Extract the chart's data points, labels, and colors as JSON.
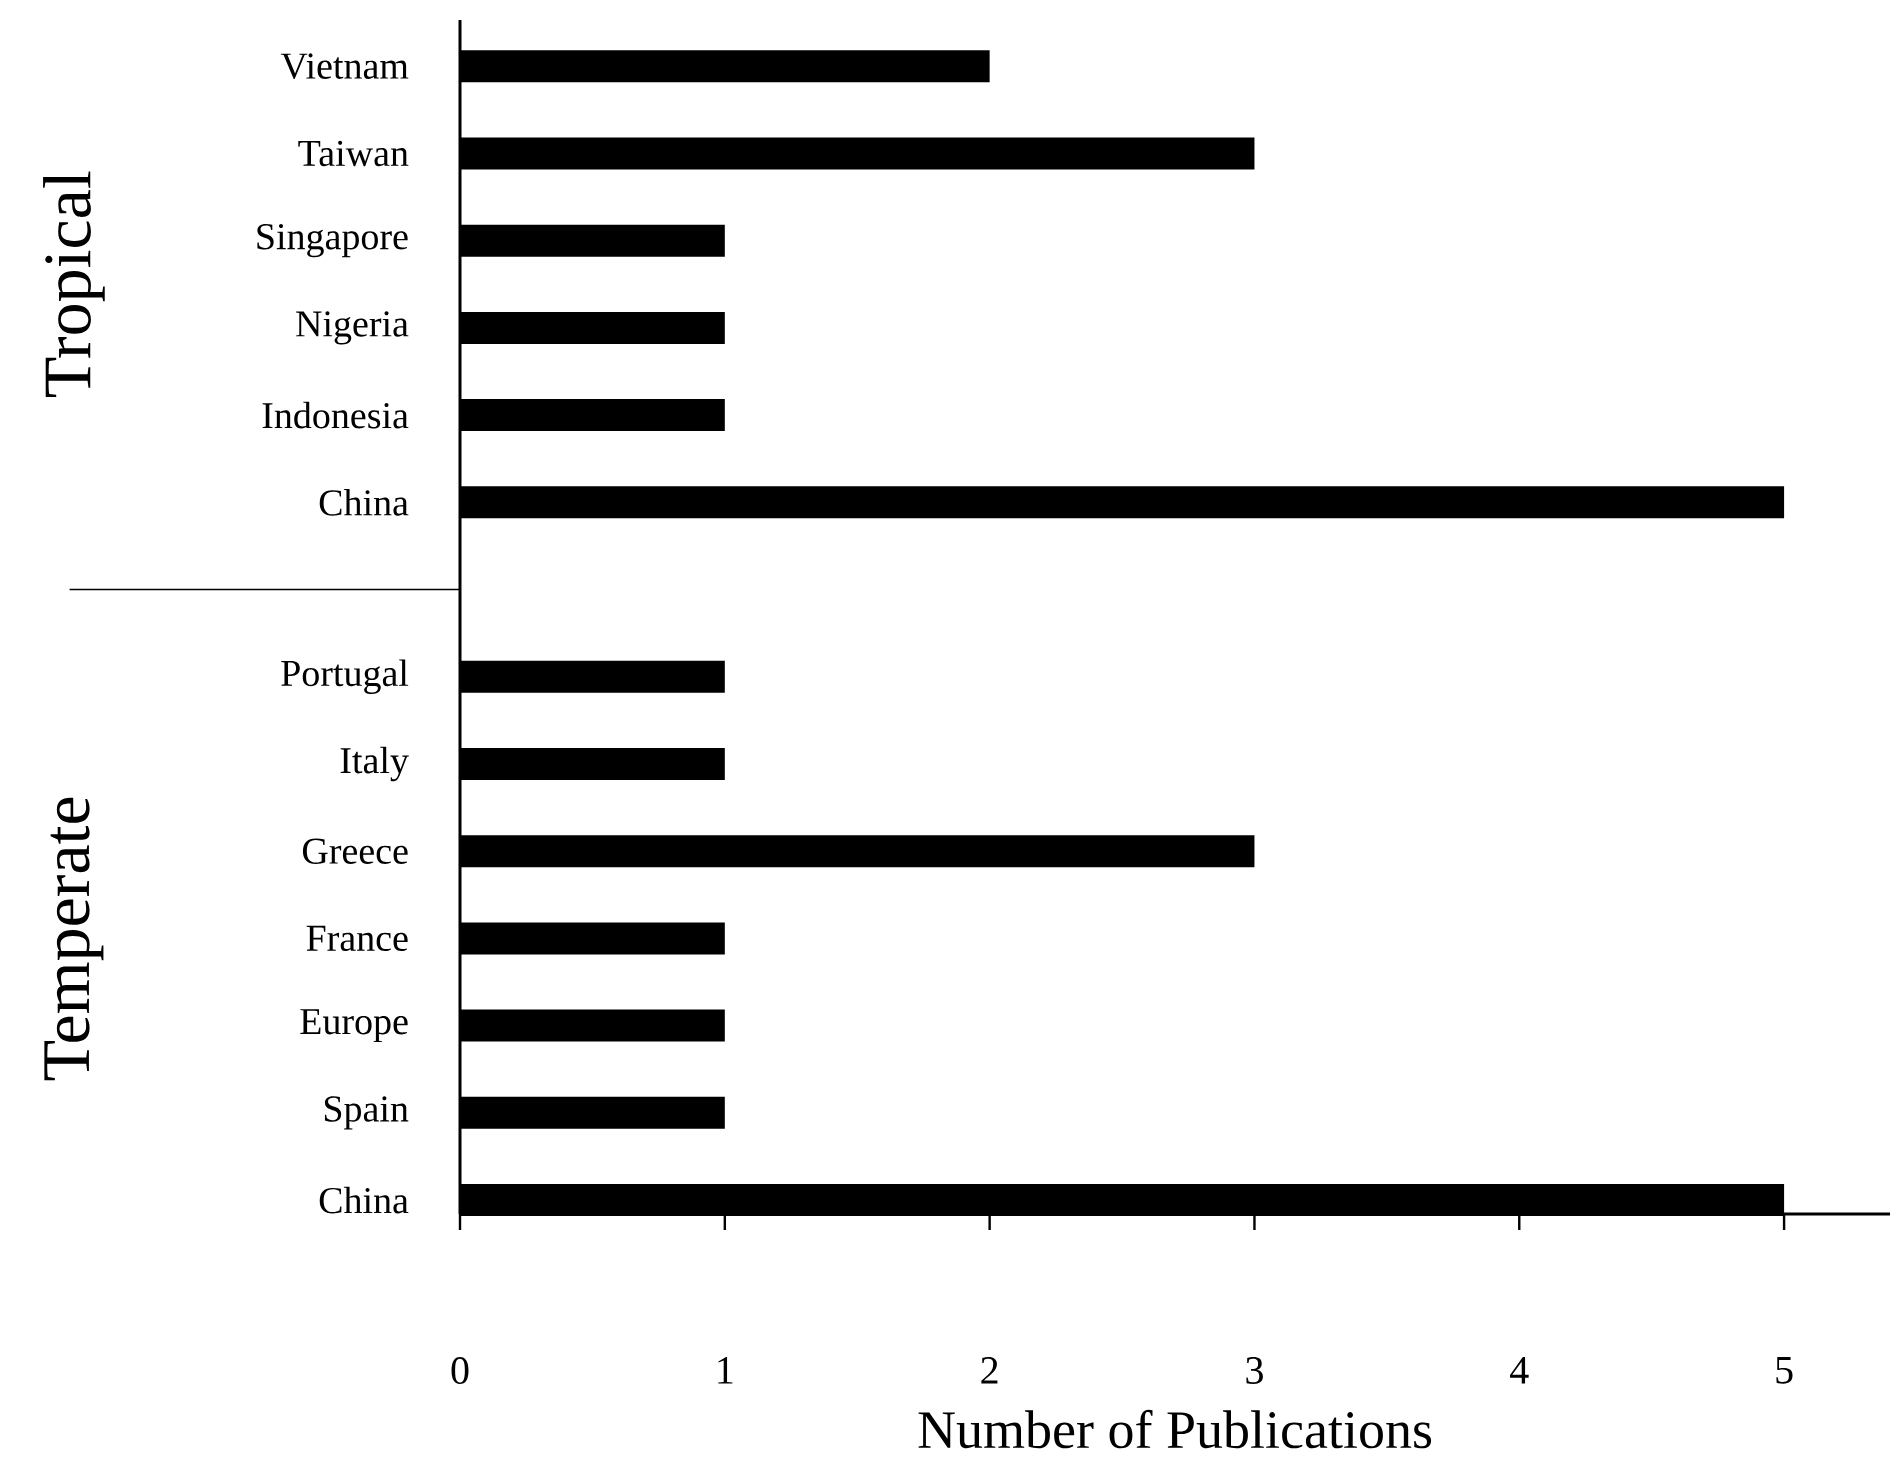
{
  "chart_data": {
    "type": "bar",
    "orientation": "horizontal",
    "xlabel": "Number of Publications",
    "categories": [
      "Vietnam",
      "Taiwan",
      "Singapore",
      "Nigeria",
      "Indonesia",
      "China",
      null,
      "Portugal",
      "Italy",
      "Greece",
      "France",
      "Europe",
      "Spain",
      "China"
    ],
    "values": [
      2,
      3,
      1,
      1,
      1,
      5,
      null,
      1,
      1,
      3,
      1,
      1,
      1,
      5
    ],
    "color": "#000000",
    "xlim": [
      0,
      5.4
    ],
    "xticks": [
      0,
      1,
      2,
      3,
      4,
      5
    ],
    "annotations": [
      "Tropical",
      "Temperate"
    ],
    "grid": false
  }
}
